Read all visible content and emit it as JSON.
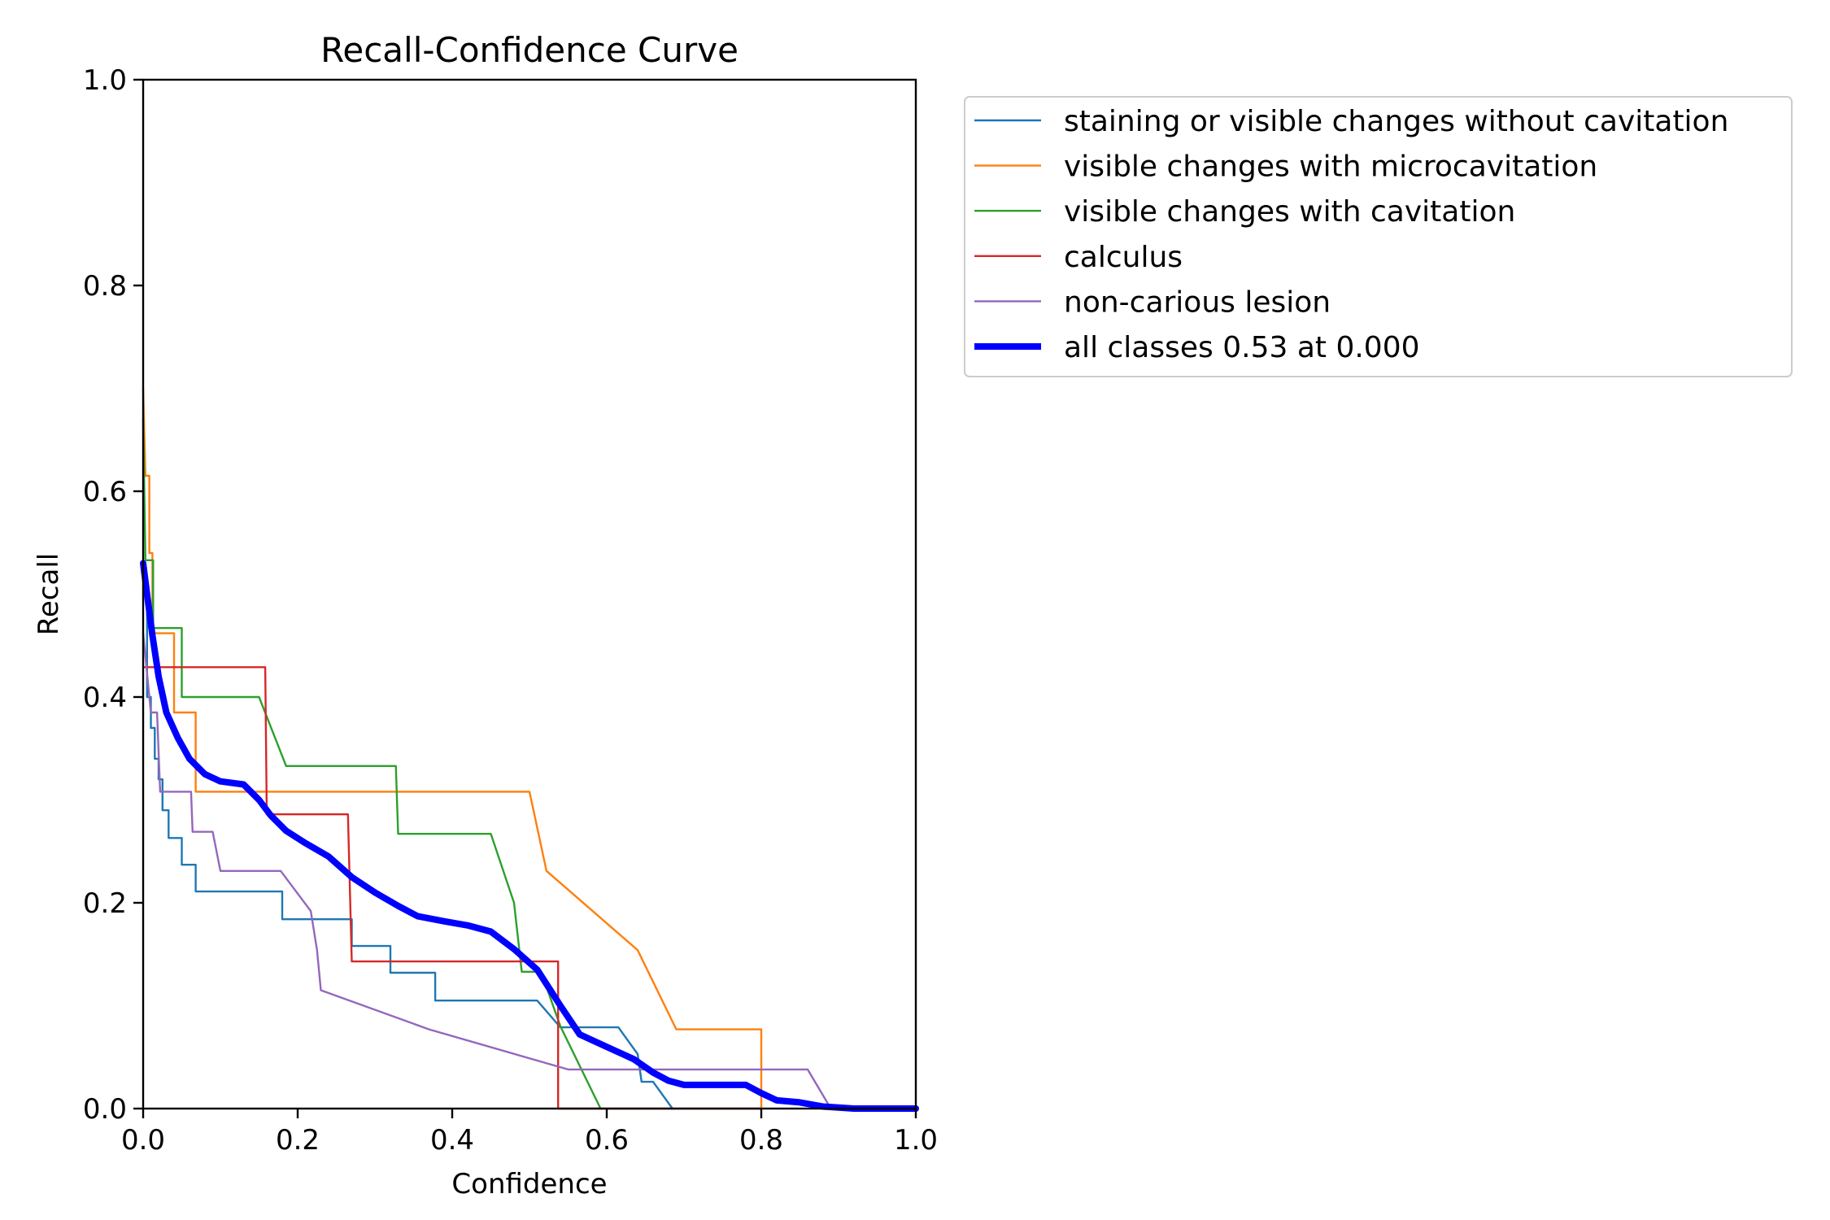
{
  "chart_data": {
    "type": "line",
    "title": "Recall-Confidence Curve",
    "xlabel": "Confidence",
    "ylabel": "Recall",
    "xlim": [
      0,
      1
    ],
    "ylim": [
      0,
      1
    ],
    "xticks": [
      "0.0",
      "0.2",
      "0.4",
      "0.6",
      "0.8",
      "1.0"
    ],
    "yticks": [
      "0.0",
      "0.2",
      "0.4",
      "0.6",
      "0.8",
      "1.0"
    ],
    "grid": false,
    "legend_position": "outside-top-right",
    "series": [
      {
        "name": "staining or visible changes without cavitation",
        "color": "#1f77b4",
        "emphasis": false,
        "points": [
          [
            0,
            0.5
          ],
          [
            0.005,
            0.5
          ],
          [
            0.005,
            0.4
          ],
          [
            0.01,
            0.4
          ],
          [
            0.01,
            0.37
          ],
          [
            0.015,
            0.37
          ],
          [
            0.015,
            0.34
          ],
          [
            0.02,
            0.34
          ],
          [
            0.02,
            0.32
          ],
          [
            0.025,
            0.32
          ],
          [
            0.025,
            0.29
          ],
          [
            0.033,
            0.29
          ],
          [
            0.033,
            0.263
          ],
          [
            0.05,
            0.263
          ],
          [
            0.05,
            0.237
          ],
          [
            0.068,
            0.237
          ],
          [
            0.068,
            0.211
          ],
          [
            0.18,
            0.211
          ],
          [
            0.18,
            0.184
          ],
          [
            0.27,
            0.184
          ],
          [
            0.27,
            0.158
          ],
          [
            0.32,
            0.158
          ],
          [
            0.32,
            0.132
          ],
          [
            0.378,
            0.132
          ],
          [
            0.378,
            0.105
          ],
          [
            0.51,
            0.105
          ],
          [
            0.54,
            0.079
          ],
          [
            0.615,
            0.079
          ],
          [
            0.64,
            0.053
          ],
          [
            0.645,
            0.026
          ],
          [
            0.66,
            0.026
          ],
          [
            0.685,
            0
          ]
        ]
      },
      {
        "name": "visible changes with microcavitation",
        "color": "#ff7f0e",
        "emphasis": false,
        "points": [
          [
            0,
            0.7
          ],
          [
            0.003,
            0.615
          ],
          [
            0.008,
            0.615
          ],
          [
            0.008,
            0.54
          ],
          [
            0.012,
            0.54
          ],
          [
            0.012,
            0.462
          ],
          [
            0.04,
            0.462
          ],
          [
            0.04,
            0.385
          ],
          [
            0.068,
            0.385
          ],
          [
            0.068,
            0.308
          ],
          [
            0.5,
            0.308
          ],
          [
            0.522,
            0.231
          ],
          [
            0.64,
            0.154
          ],
          [
            0.69,
            0.077
          ],
          [
            0.8,
            0.077
          ],
          [
            0.8,
            0
          ]
        ]
      },
      {
        "name": "visible changes with cavitation",
        "color": "#2ca02c",
        "emphasis": false,
        "points": [
          [
            0,
            0.67
          ],
          [
            0.003,
            0.533
          ],
          [
            0.013,
            0.533
          ],
          [
            0.013,
            0.467
          ],
          [
            0.05,
            0.467
          ],
          [
            0.05,
            0.4
          ],
          [
            0.15,
            0.4
          ],
          [
            0.185,
            0.333
          ],
          [
            0.327,
            0.333
          ],
          [
            0.33,
            0.267
          ],
          [
            0.45,
            0.267
          ],
          [
            0.48,
            0.2
          ],
          [
            0.49,
            0.133
          ],
          [
            0.515,
            0.133
          ],
          [
            0.54,
            0.08
          ],
          [
            0.592,
            0
          ]
        ]
      },
      {
        "name": "calculus",
        "color": "#d62728",
        "emphasis": false,
        "points": [
          [
            0,
            0.429
          ],
          [
            0.158,
            0.429
          ],
          [
            0.16,
            0.286
          ],
          [
            0.265,
            0.286
          ],
          [
            0.27,
            0.143
          ],
          [
            0.537,
            0.143
          ],
          [
            0.537,
            0
          ],
          [
            0.8,
            0
          ]
        ]
      },
      {
        "name": "non-carious lesion",
        "color": "#9467bd",
        "emphasis": false,
        "points": [
          [
            0,
            0.462
          ],
          [
            0.01,
            0.385
          ],
          [
            0.018,
            0.385
          ],
          [
            0.022,
            0.308
          ],
          [
            0.062,
            0.308
          ],
          [
            0.064,
            0.269
          ],
          [
            0.09,
            0.269
          ],
          [
            0.1,
            0.231
          ],
          [
            0.178,
            0.231
          ],
          [
            0.217,
            0.192
          ],
          [
            0.225,
            0.154
          ],
          [
            0.23,
            0.115
          ],
          [
            0.37,
            0.077
          ],
          [
            0.55,
            0.038
          ],
          [
            0.86,
            0.038
          ],
          [
            0.89,
            0
          ]
        ]
      },
      {
        "name": "all classes 0.53 at 0.000",
        "color": "#0000ff",
        "emphasis": true,
        "points": [
          [
            0,
            0.53
          ],
          [
            0.005,
            0.5
          ],
          [
            0.012,
            0.46
          ],
          [
            0.02,
            0.42
          ],
          [
            0.03,
            0.385
          ],
          [
            0.045,
            0.36
          ],
          [
            0.06,
            0.34
          ],
          [
            0.08,
            0.325
          ],
          [
            0.1,
            0.318
          ],
          [
            0.13,
            0.315
          ],
          [
            0.15,
            0.3
          ],
          [
            0.165,
            0.285
          ],
          [
            0.185,
            0.27
          ],
          [
            0.21,
            0.258
          ],
          [
            0.24,
            0.245
          ],
          [
            0.27,
            0.225
          ],
          [
            0.3,
            0.21
          ],
          [
            0.33,
            0.197
          ],
          [
            0.355,
            0.187
          ],
          [
            0.39,
            0.182
          ],
          [
            0.42,
            0.178
          ],
          [
            0.45,
            0.172
          ],
          [
            0.48,
            0.155
          ],
          [
            0.51,
            0.135
          ],
          [
            0.54,
            0.1
          ],
          [
            0.565,
            0.072
          ],
          [
            0.6,
            0.06
          ],
          [
            0.635,
            0.048
          ],
          [
            0.66,
            0.035
          ],
          [
            0.68,
            0.027
          ],
          [
            0.7,
            0.023
          ],
          [
            0.78,
            0.023
          ],
          [
            0.8,
            0.015
          ],
          [
            0.82,
            0.008
          ],
          [
            0.85,
            0.006
          ],
          [
            0.88,
            0.002
          ],
          [
            0.92,
            0
          ],
          [
            1,
            0
          ]
        ]
      }
    ]
  }
}
